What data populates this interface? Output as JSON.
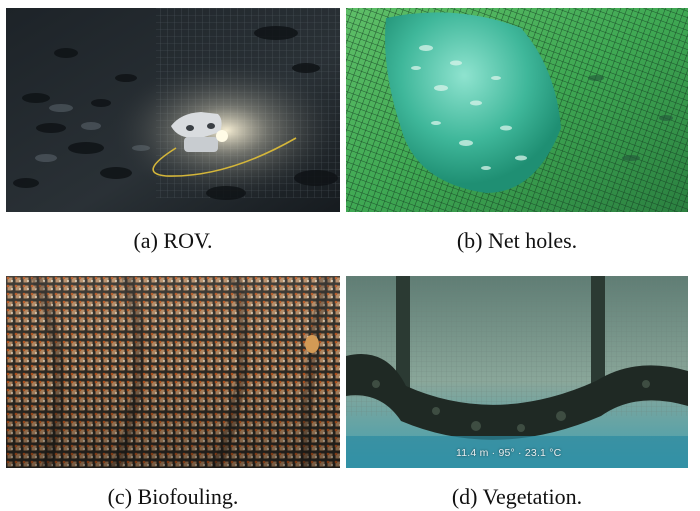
{
  "figure": {
    "panels": [
      {
        "id": "a",
        "caption": "(a) ROV."
      },
      {
        "id": "b",
        "caption": "(b) Net holes."
      },
      {
        "id": "c",
        "caption": "(c) Biofouling."
      },
      {
        "id": "d",
        "caption": "(d) Vegetation.",
        "overlay_text": "11.4 m · 95° · 23.1 °C"
      }
    ]
  }
}
